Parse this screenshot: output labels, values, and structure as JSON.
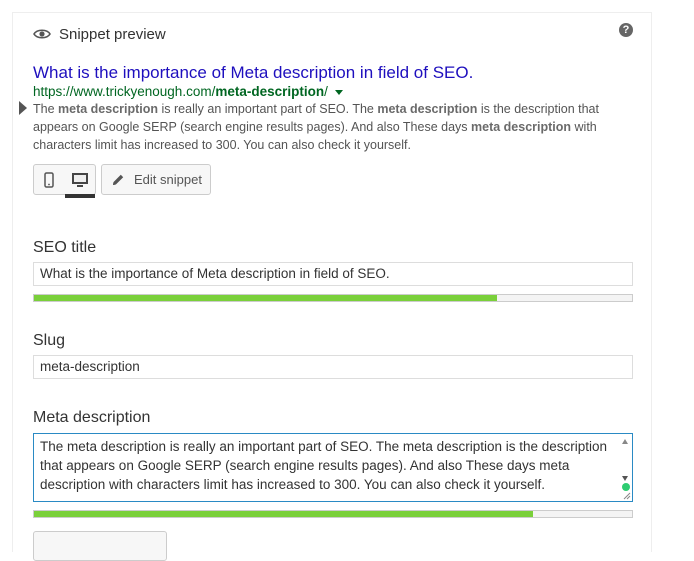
{
  "header": {
    "title": "Snippet preview",
    "help": "?"
  },
  "serp": {
    "title": "What is the importance of Meta description in field of SEO.",
    "url_base": "https://www.trickyenough.com/",
    "url_slug": "meta-description",
    "url_suffix": "/",
    "description_parts": [
      {
        "text": "The ",
        "bold": false
      },
      {
        "text": "meta description",
        "bold": true
      },
      {
        "text": " is really an important part of SEO. The ",
        "bold": false
      },
      {
        "text": "meta description",
        "bold": true
      },
      {
        "text": " is the description that appears on Google SERP (search engine results pages). And also These days ",
        "bold": false
      },
      {
        "text": "meta description",
        "bold": true
      },
      {
        "text": " with characters limit has increased to 300. You can also check it yourself.",
        "bold": false
      }
    ]
  },
  "toolbar": {
    "mobile_icon": "mobile-icon",
    "desktop_icon": "desktop-icon",
    "edit_label": "Edit snippet"
  },
  "seo_title": {
    "label": "SEO title",
    "value": "What is the importance of Meta description in field of SEO.",
    "progress": 0.775,
    "progress_color": "#7ad03a"
  },
  "slug": {
    "label": "Slug",
    "value": "meta-description"
  },
  "meta_description": {
    "label": "Meta description",
    "value": "The meta description is really an important part of SEO. The meta description is the description that appears on Google SERP (search engine results pages). And also These days meta description with characters limit has increased to 300. You can also check it yourself.",
    "progress": 0.835,
    "progress_color": "#7ad03a"
  }
}
